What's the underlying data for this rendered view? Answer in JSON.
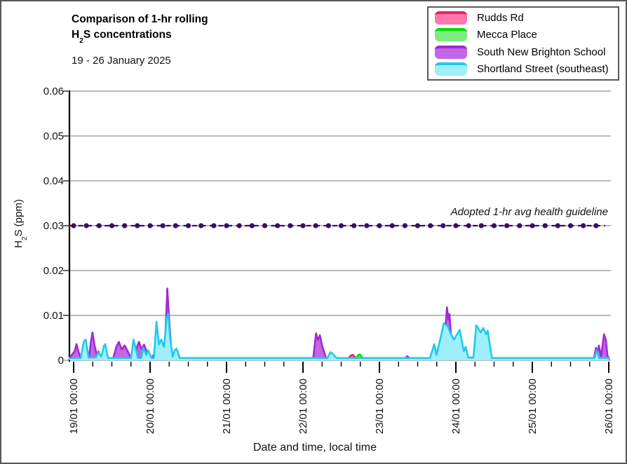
{
  "figure": {
    "title_line1": "Comparison of 1-hr rolling",
    "title_h": "H",
    "title_sub": "2",
    "title_rest": "S concentrations",
    "subtitle": "19 - 26 January 2025",
    "y_axis_pre": "H",
    "y_axis_sub": "2",
    "y_axis_rest": "S (ppm)",
    "x_axis_title": "Date and time, local time"
  },
  "chart_data": {
    "type": "area",
    "title": "Comparison of 1-hr rolling H2S concentrations",
    "subtitle": "19 - 26 January 2025",
    "xlabel": "Date and time, local time",
    "ylabel": "H2S (ppm)",
    "ylim": [
      0,
      0.06
    ],
    "grid": "horizontal",
    "legend_position": "top-right",
    "x_unit": "hours since 19/01/2025 00:00 local time",
    "yticks": [
      {
        "v": 0,
        "label": "0"
      },
      {
        "v": 0.01,
        "label": "0.01"
      },
      {
        "v": 0.02,
        "label": "0.02"
      },
      {
        "v": 0.03,
        "label": "0.03"
      },
      {
        "v": 0.04,
        "label": "0.04"
      },
      {
        "v": 0.05,
        "label": "0.05"
      },
      {
        "v": 0.06,
        "label": "0.06"
      }
    ],
    "xticks_major": [
      {
        "h": 0,
        "label": "19/01 00:00"
      },
      {
        "h": 24,
        "label": "20/01 00:00"
      },
      {
        "h": 48,
        "label": "21/01 00:00"
      },
      {
        "h": 72,
        "label": "22/01 00:00"
      },
      {
        "h": 96,
        "label": "23/01 00:00"
      },
      {
        "h": 120,
        "label": "24/01 00:00"
      },
      {
        "h": 144,
        "label": "25/01 00:00"
      },
      {
        "h": 168,
        "label": "26/01 00:00"
      }
    ],
    "xtick_minor_hours": 6,
    "guideline": {
      "value": 0.03,
      "label": "Adopted 1-hr avg health guideline",
      "color": "#3A0D66",
      "marker_every_hours": 4
    },
    "series": [
      {
        "name": "Rudds Rd",
        "line": "#EE2268",
        "fill": "#FF77AD",
        "points": [
          [
            -1.3,
            0.0003
          ],
          [
            86,
            0.0003
          ],
          [
            87.1,
            0.0011
          ],
          [
            87.7,
            0.0012
          ],
          [
            88.9,
            0.0003
          ],
          [
            168,
            0.0003
          ]
        ]
      },
      {
        "name": "Mecca Place",
        "line": "#00DF00",
        "fill": "#7FEC82",
        "points": [
          [
            -1.3,
            0.0002
          ],
          [
            88.5,
            0.0002
          ],
          [
            89.4,
            0.0012
          ],
          [
            89.9,
            0.0013
          ],
          [
            91.1,
            0.0002
          ],
          [
            168,
            0.0002
          ]
        ]
      },
      {
        "name": "South New Brighton School",
        "line": "#A428D4",
        "fill": "#C167E5",
        "points": [
          [
            -1.3,
            0.0005
          ],
          [
            0.3,
            0.002
          ],
          [
            0.9,
            0.0036
          ],
          [
            1.5,
            0.002
          ],
          [
            2.2,
            0.0004
          ],
          [
            4.8,
            0.0004
          ],
          [
            5.4,
            0.004
          ],
          [
            5.9,
            0.0062
          ],
          [
            6.6,
            0.0032
          ],
          [
            7.3,
            0.0012
          ],
          [
            7.8,
            0.002
          ],
          [
            8.6,
            0.0004
          ],
          [
            12.4,
            0.0004
          ],
          [
            13.4,
            0.003
          ],
          [
            14.2,
            0.0041
          ],
          [
            15.1,
            0.0024
          ],
          [
            16,
            0.0033
          ],
          [
            17,
            0.002
          ],
          [
            18,
            0.0004
          ],
          [
            19.2,
            0.0004
          ],
          [
            20,
            0.0032
          ],
          [
            20.5,
            0.0041
          ],
          [
            21.3,
            0.0025
          ],
          [
            22.1,
            0.0035
          ],
          [
            23.2,
            0.0015
          ],
          [
            24.4,
            0.0004
          ],
          [
            24.9,
            0.001
          ],
          [
            25.6,
            0.0016
          ],
          [
            26.3,
            0.0004
          ],
          [
            27.9,
            0.0004
          ],
          [
            28.7,
            0.004
          ],
          [
            29.4,
            0.016
          ],
          [
            30.1,
            0.008
          ],
          [
            30.7,
            0.002
          ],
          [
            31.5,
            0.0004
          ],
          [
            75.2,
            0.0004
          ],
          [
            76.1,
            0.006
          ],
          [
            76.7,
            0.0045
          ],
          [
            77.3,
            0.0056
          ],
          [
            78.1,
            0.003
          ],
          [
            79.3,
            0.0004
          ],
          [
            104,
            0.0004
          ],
          [
            104.7,
            0.0009
          ],
          [
            105.7,
            0.0004
          ],
          [
            115.3,
            0.0004
          ],
          [
            116.4,
            0.004
          ],
          [
            117.2,
            0.0118
          ],
          [
            117.7,
            0.009
          ],
          [
            118,
            0.0103
          ],
          [
            118.8,
            0.002
          ],
          [
            119.5,
            0.0004
          ],
          [
            163.3,
            0.0004
          ],
          [
            164,
            0.0028
          ],
          [
            164.5,
            0.0015
          ],
          [
            164.9,
            0.0033
          ],
          [
            165.6,
            0.0008
          ],
          [
            166.5,
            0.0058
          ],
          [
            167.1,
            0.0046
          ],
          [
            167.6,
            0.001
          ],
          [
            168,
            0.0006
          ]
        ]
      },
      {
        "name": "Shortland Street (southeast)",
        "line": "#20C9EA",
        "fill": "#9EEFFB",
        "points": [
          [
            -1.3,
            0.0005
          ],
          [
            2.2,
            0.0005
          ],
          [
            3.2,
            0.0042
          ],
          [
            3.8,
            0.0046
          ],
          [
            4.7,
            0.0006
          ],
          [
            7,
            0.0006
          ],
          [
            7.7,
            0.0018
          ],
          [
            8.7,
            0.0008
          ],
          [
            9.5,
            0.0032
          ],
          [
            9.9,
            0.0036
          ],
          [
            10.8,
            0.0005
          ],
          [
            18,
            0.0005
          ],
          [
            18.8,
            0.0046
          ],
          [
            19.5,
            0.0025
          ],
          [
            20.2,
            0.0005
          ],
          [
            21.2,
            0.0005
          ],
          [
            21.9,
            0.0028
          ],
          [
            22.8,
            0.0012
          ],
          [
            23.4,
            0.0022
          ],
          [
            24.5,
            0.0005
          ],
          [
            25.2,
            0.0005
          ],
          [
            26,
            0.0086
          ],
          [
            26.8,
            0.0035
          ],
          [
            27.5,
            0.0046
          ],
          [
            28.4,
            0.003
          ],
          [
            29.2,
            0.0095
          ],
          [
            29.7,
            0.0104
          ],
          [
            30.3,
            0.005
          ],
          [
            31.1,
            0.0008
          ],
          [
            31.7,
            0.0022
          ],
          [
            32.3,
            0.0026
          ],
          [
            33.3,
            0.0005
          ],
          [
            79.7,
            0.0005
          ],
          [
            80.6,
            0.0018
          ],
          [
            81.2,
            0.0015
          ],
          [
            82.5,
            0.0005
          ],
          [
            111.9,
            0.0005
          ],
          [
            113.2,
            0.0036
          ],
          [
            113.9,
            0.0012
          ],
          [
            115.2,
            0.005
          ],
          [
            116.2,
            0.0083
          ],
          [
            117.5,
            0.0075
          ],
          [
            118.3,
            0.006
          ],
          [
            119.4,
            0.0046
          ],
          [
            121.2,
            0.0068
          ],
          [
            122.5,
            0.002
          ],
          [
            123.1,
            0.003
          ],
          [
            123.9,
            0.0006
          ],
          [
            125.5,
            0.0006
          ],
          [
            126.4,
            0.0078
          ],
          [
            127.8,
            0.0062
          ],
          [
            128.6,
            0.0072
          ],
          [
            129.5,
            0.0058
          ],
          [
            130,
            0.0066
          ],
          [
            131.3,
            0.0005
          ],
          [
            163.5,
            0.0005
          ],
          [
            164.2,
            0.0022
          ],
          [
            165,
            0.0005
          ],
          [
            168,
            0.0005
          ]
        ]
      }
    ]
  }
}
